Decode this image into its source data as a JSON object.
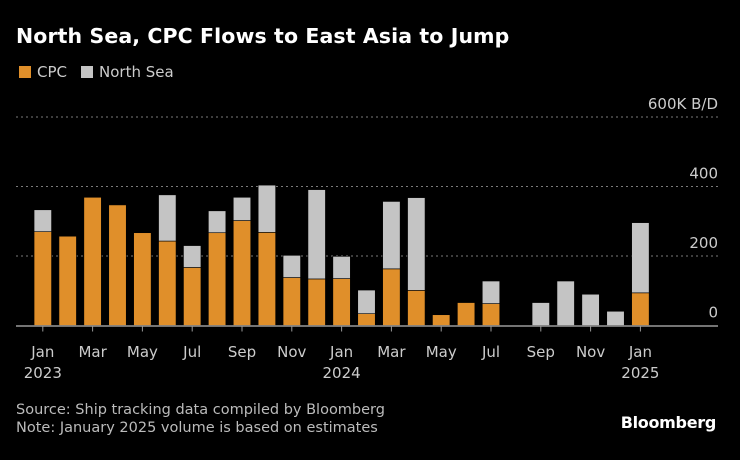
{
  "chart_data": {
    "type": "bar",
    "stacked": true,
    "title": "North Sea, CPC Flows to East Asia to Jump",
    "unit_label": "600K B/D",
    "xlabel": "",
    "ylabel": "",
    "ylim": [
      0,
      600
    ],
    "yticks": [
      0,
      200,
      400,
      600
    ],
    "ytick_labels": [
      "0",
      "200",
      "400",
      "600K B/D"
    ],
    "grid": true,
    "legend_position": "top-left",
    "categories": [
      "Jan 2023",
      "Feb 2023",
      "Mar 2023",
      "Apr 2023",
      "May 2023",
      "Jun 2023",
      "Jul 2023",
      "Aug 2023",
      "Sep 2023",
      "Oct 2023",
      "Nov 2023",
      "Dec 2023",
      "Jan 2024",
      "Feb 2024",
      "Mar 2024",
      "Apr 2024",
      "May 2024",
      "Jun 2024",
      "Jul 2024",
      "Aug 2024",
      "Sep 2024",
      "Oct 2024",
      "Nov 2024",
      "Dec 2024",
      "Jan 2025"
    ],
    "xtick_labels": [
      {
        "index": 0,
        "line1": "Jan",
        "line2": "2023"
      },
      {
        "index": 2,
        "line1": "Mar",
        "line2": ""
      },
      {
        "index": 4,
        "line1": "May",
        "line2": ""
      },
      {
        "index": 6,
        "line1": "Jul",
        "line2": ""
      },
      {
        "index": 8,
        "line1": "Sep",
        "line2": ""
      },
      {
        "index": 10,
        "line1": "Nov",
        "line2": ""
      },
      {
        "index": 12,
        "line1": "Jan",
        "line2": "2024"
      },
      {
        "index": 14,
        "line1": "Mar",
        "line2": ""
      },
      {
        "index": 16,
        "line1": "May",
        "line2": ""
      },
      {
        "index": 18,
        "line1": "Jul",
        "line2": ""
      },
      {
        "index": 20,
        "line1": "Sep",
        "line2": ""
      },
      {
        "index": 22,
        "line1": "Nov",
        "line2": ""
      },
      {
        "index": 24,
        "line1": "Jan",
        "line2": "2025"
      }
    ],
    "series": [
      {
        "name": "CPC",
        "color": "#e08f2a",
        "values": [
          270,
          257,
          369,
          347,
          267,
          243,
          167,
          267,
          302,
          268,
          138,
          134,
          135,
          34,
          163,
          101,
          31,
          66,
          63,
          0,
          0,
          0,
          0,
          0,
          94
        ]
      },
      {
        "name": "North Sea",
        "color": "#c4c4c4",
        "values": [
          63,
          0,
          0,
          0,
          0,
          133,
          63,
          63,
          67,
          136,
          64,
          257,
          64,
          68,
          194,
          267,
          0,
          0,
          65,
          0,
          66,
          128,
          90,
          41,
          202
        ]
      }
    ]
  },
  "legend": [
    {
      "label": "CPC",
      "color": "#e08f2a"
    },
    {
      "label": "North Sea",
      "color": "#c4c4c4"
    }
  ],
  "footer": {
    "source": "Source: Ship tracking data compiled by Bloomberg",
    "note": "Note: January 2025 volume is based on estimates"
  },
  "brand": "Bloomberg"
}
